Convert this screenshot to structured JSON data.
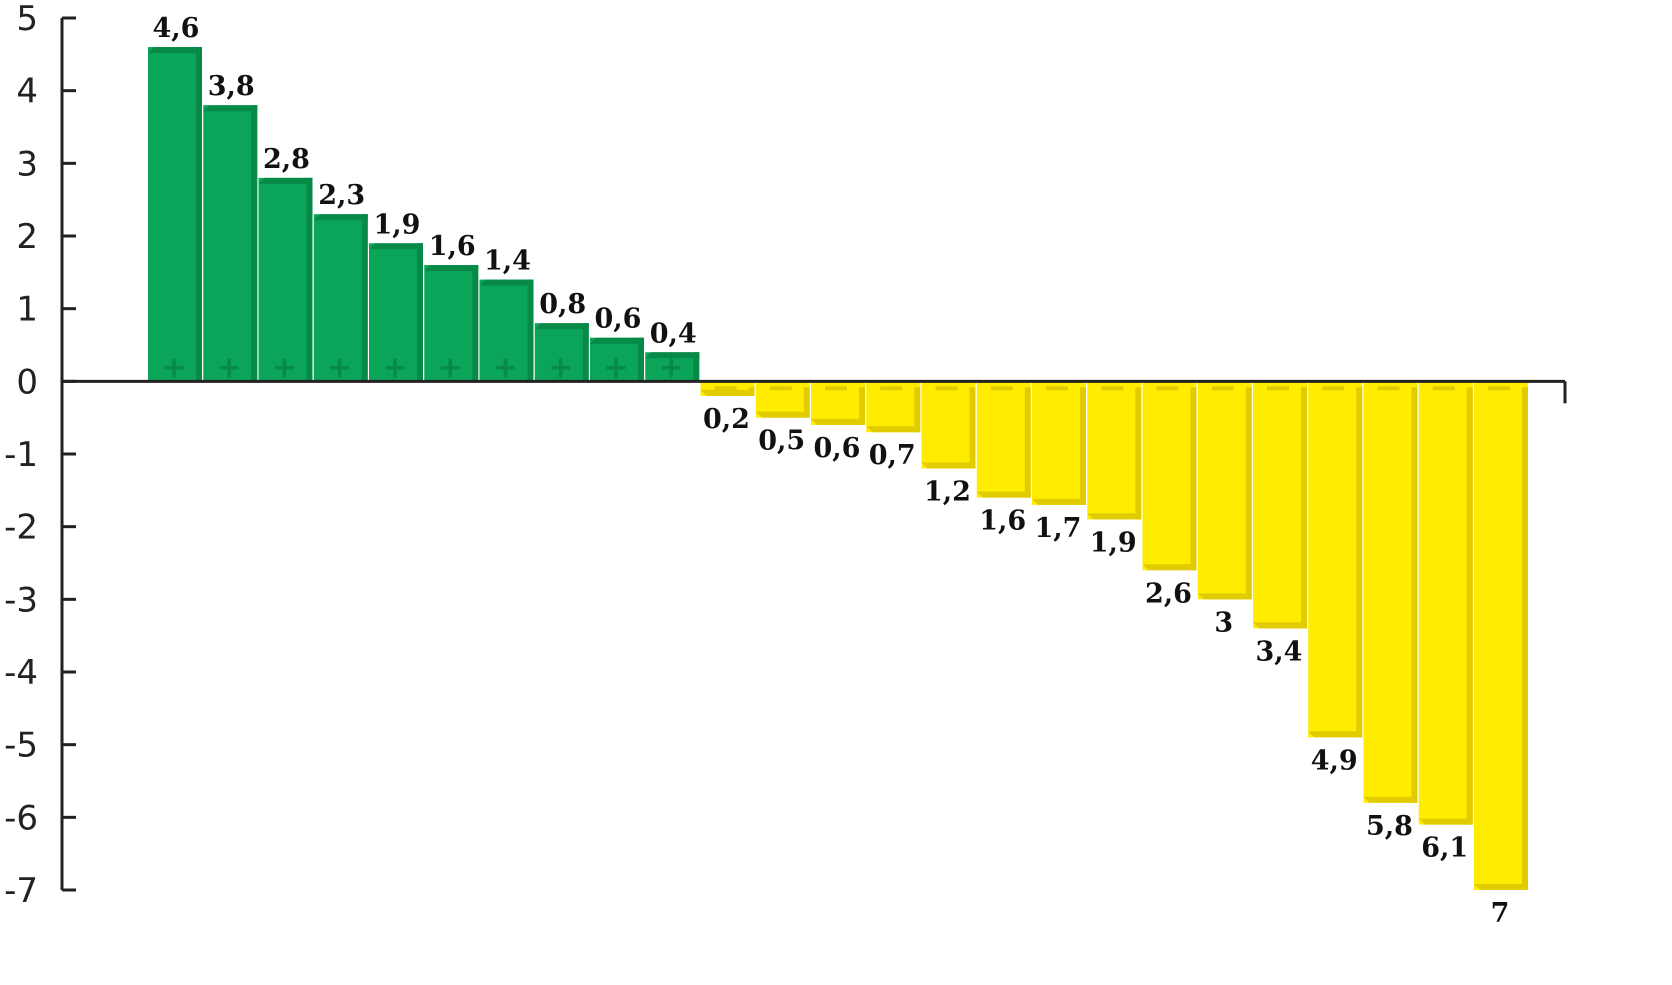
{
  "chart_data": {
    "type": "bar",
    "title": "",
    "xlabel": "",
    "ylabel": "",
    "ylim": [
      -7,
      5
    ],
    "yticks": [
      5,
      4,
      3,
      2,
      1,
      0,
      -1,
      -2,
      -3,
      -4,
      -5,
      -6,
      -7
    ],
    "grid": false,
    "values": [
      4.6,
      3.8,
      2.8,
      2.3,
      1.9,
      1.6,
      1.4,
      0.8,
      0.6,
      0.4,
      -0.2,
      -0.5,
      -0.6,
      -0.7,
      -1.2,
      -1.6,
      -1.7,
      -1.9,
      -2.6,
      -3,
      -3.4,
      -4.9,
      -5.8,
      -6.1,
      -7
    ],
    "data_labels": [
      "4,6",
      "3,8",
      "2,8",
      "2,3",
      "1,9",
      "1,6",
      "1,4",
      "0,8",
      "0,6",
      "0,4",
      "0,2",
      "0,5",
      "0,6",
      "0,7",
      "1,2",
      "1,6",
      "1,7",
      "1,9",
      "2,6",
      "3",
      "3,4",
      "4,9",
      "5,8",
      "6,1",
      "7"
    ],
    "colors": {
      "positive": "#0ba55a",
      "positive_edge": "#078a48",
      "negative": "#ffec00",
      "negative_edge": "#e0cc00"
    },
    "bar_marks": {
      "positive": "+",
      "negative": "−"
    }
  }
}
